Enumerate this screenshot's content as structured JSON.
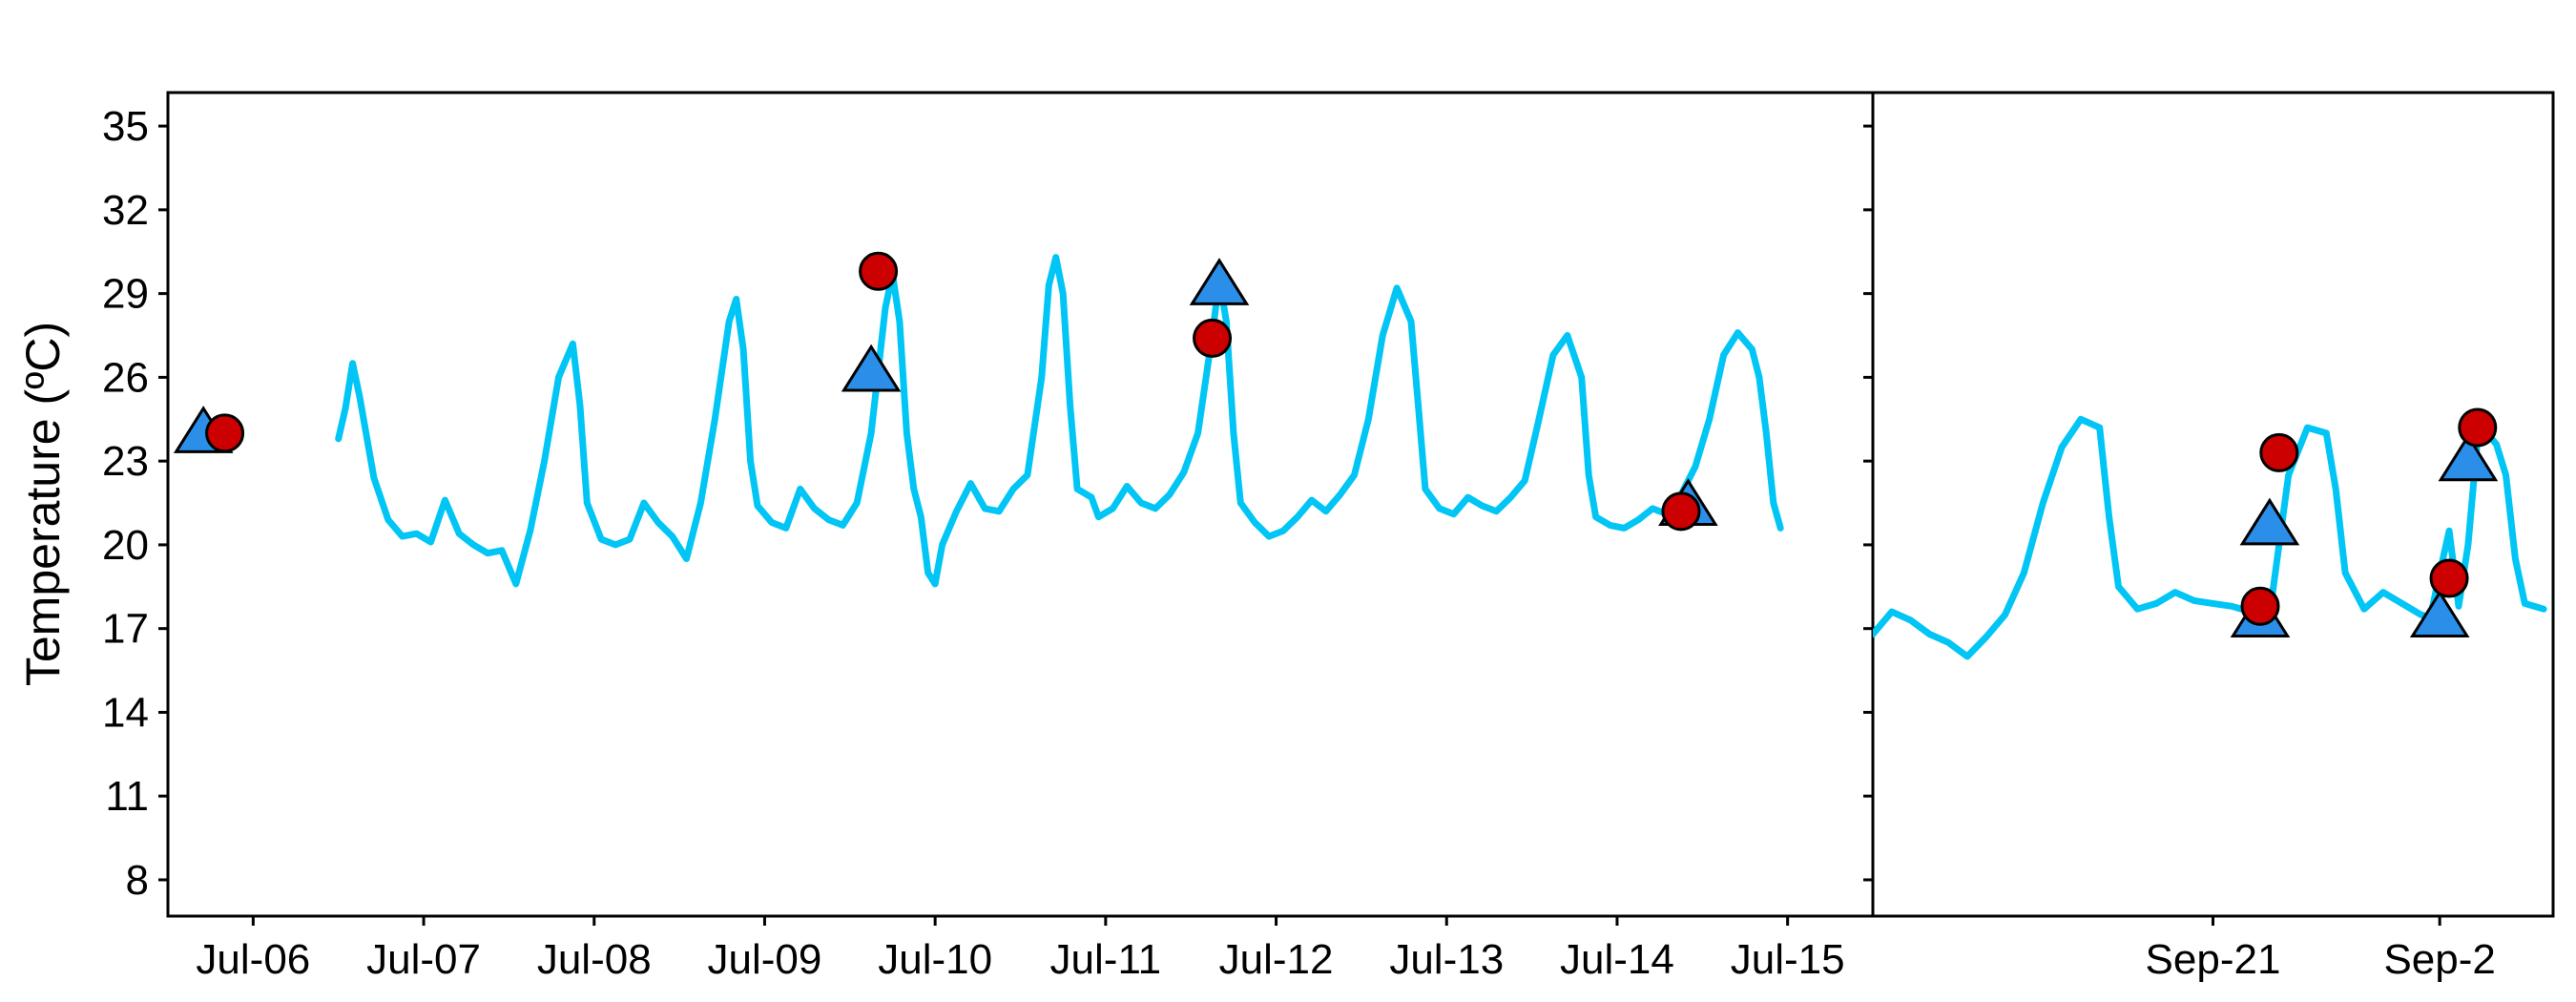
{
  "chart_data": {
    "type": "line",
    "ylabel": "Temperature (ºC)",
    "y_ticks": [
      8,
      11,
      14,
      17,
      20,
      23,
      26,
      29,
      32,
      35
    ],
    "ylim": [
      6.7,
      36.2
    ],
    "grid": false,
    "colors": {
      "line": "#00C5F5",
      "triangle": "#2B8FEA",
      "circle": "#CC0000",
      "marker_edge": "#000000"
    },
    "panels": [
      {
        "name": "july",
        "x_unit": "days",
        "xlim": [
          "2020-07-05 12:00",
          "2020-07-15 12:00"
        ],
        "x_tick_labels": [
          "Jul-06",
          "Jul-07",
          "Jul-08",
          "Jul-09",
          "Jul-10",
          "Jul-11",
          "Jul-12",
          "Jul-13",
          "Jul-14",
          "Jul-15"
        ],
        "x_ticks": [
          "2020-07-06",
          "2020-07-07",
          "2020-07-08",
          "2020-07-09",
          "2020-07-10",
          "2020-07-11",
          "2020-07-12",
          "2020-07-13",
          "2020-07-14",
          "2020-07-15"
        ],
        "line": [
          [
            "2020-07-06 12:00",
            23.8
          ],
          [
            "2020-07-06 13:00",
            24.9
          ],
          [
            "2020-07-06 14:00",
            26.5
          ],
          [
            "2020-07-06 15:00",
            25.3
          ],
          [
            "2020-07-06 17:00",
            22.4
          ],
          [
            "2020-07-06 19:00",
            20.9
          ],
          [
            "2020-07-06 21:00",
            20.3
          ],
          [
            "2020-07-06 23:00",
            20.4
          ],
          [
            "2020-07-07 01:00",
            20.1
          ],
          [
            "2020-07-07 03:00",
            21.6
          ],
          [
            "2020-07-07 05:00",
            20.4
          ],
          [
            "2020-07-07 07:00",
            20.0
          ],
          [
            "2020-07-07 09:00",
            19.7
          ],
          [
            "2020-07-07 11:00",
            19.8
          ],
          [
            "2020-07-07 13:00",
            18.6
          ],
          [
            "2020-07-07 15:00",
            20.5
          ],
          [
            "2020-07-07 17:00",
            23.0
          ],
          [
            "2020-07-07 19:00",
            26.0
          ],
          [
            "2020-07-07 21:00",
            27.2
          ],
          [
            "2020-07-07 22:00",
            25.0
          ],
          [
            "2020-07-07 23:00",
            21.5
          ],
          [
            "2020-07-08 01:00",
            20.2
          ],
          [
            "2020-07-08 03:00",
            20.0
          ],
          [
            "2020-07-08 05:00",
            20.2
          ],
          [
            "2020-07-08 07:00",
            21.5
          ],
          [
            "2020-07-08 09:00",
            20.8
          ],
          [
            "2020-07-08 11:00",
            20.3
          ],
          [
            "2020-07-08 13:00",
            19.5
          ],
          [
            "2020-07-08 15:00",
            21.5
          ],
          [
            "2020-07-08 17:00",
            24.5
          ],
          [
            "2020-07-08 19:00",
            28.0
          ],
          [
            "2020-07-08 20:00",
            28.8
          ],
          [
            "2020-07-08 21:00",
            27.0
          ],
          [
            "2020-07-08 22:00",
            23.0
          ],
          [
            "2020-07-08 23:00",
            21.4
          ],
          [
            "2020-07-09 01:00",
            20.8
          ],
          [
            "2020-07-09 03:00",
            20.6
          ],
          [
            "2020-07-09 05:00",
            22.0
          ],
          [
            "2020-07-09 07:00",
            21.3
          ],
          [
            "2020-07-09 09:00",
            20.9
          ],
          [
            "2020-07-09 11:00",
            20.7
          ],
          [
            "2020-07-09 13:00",
            21.5
          ],
          [
            "2020-07-09 15:00",
            24.0
          ],
          [
            "2020-07-09 17:00",
            28.5
          ],
          [
            "2020-07-09 18:00",
            29.7
          ],
          [
            "2020-07-09 19:00",
            28.0
          ],
          [
            "2020-07-09 20:00",
            24.0
          ],
          [
            "2020-07-09 21:00",
            22.0
          ],
          [
            "2020-07-09 22:00",
            21.0
          ],
          [
            "2020-07-09 23:00",
            19.0
          ],
          [
            "2020-07-10 00:00",
            18.6
          ],
          [
            "2020-07-10 01:00",
            20.0
          ],
          [
            "2020-07-10 03:00",
            21.2
          ],
          [
            "2020-07-10 05:00",
            22.2
          ],
          [
            "2020-07-10 07:00",
            21.3
          ],
          [
            "2020-07-10 09:00",
            21.2
          ],
          [
            "2020-07-10 11:00",
            22.0
          ],
          [
            "2020-07-10 13:00",
            22.5
          ],
          [
            "2020-07-10 15:00",
            26.0
          ],
          [
            "2020-07-10 16:00",
            29.3
          ],
          [
            "2020-07-10 17:00",
            30.3
          ],
          [
            "2020-07-10 18:00",
            29.0
          ],
          [
            "2020-07-10 19:00",
            25.0
          ],
          [
            "2020-07-10 20:00",
            22.0
          ],
          [
            "2020-07-10 22:00",
            21.7
          ],
          [
            "2020-07-10 23:00",
            21.0
          ],
          [
            "2020-07-11 01:00",
            21.3
          ],
          [
            "2020-07-11 03:00",
            22.1
          ],
          [
            "2020-07-11 05:00",
            21.5
          ],
          [
            "2020-07-11 07:00",
            21.3
          ],
          [
            "2020-07-11 09:00",
            21.8
          ],
          [
            "2020-07-11 11:00",
            22.6
          ],
          [
            "2020-07-11 13:00",
            24.0
          ],
          [
            "2020-07-11 15:00",
            27.5
          ],
          [
            "2020-07-11 16:00",
            29.5
          ],
          [
            "2020-07-11 17:00",
            28.0
          ],
          [
            "2020-07-11 18:00",
            24.0
          ],
          [
            "2020-07-11 19:00",
            21.5
          ],
          [
            "2020-07-11 21:00",
            20.8
          ],
          [
            "2020-07-11 23:00",
            20.3
          ],
          [
            "2020-07-12 01:00",
            20.5
          ],
          [
            "2020-07-12 03:00",
            21.0
          ],
          [
            "2020-07-12 05:00",
            21.6
          ],
          [
            "2020-07-12 07:00",
            21.2
          ],
          [
            "2020-07-12 09:00",
            21.8
          ],
          [
            "2020-07-12 11:00",
            22.5
          ],
          [
            "2020-07-12 13:00",
            24.5
          ],
          [
            "2020-07-12 15:00",
            27.5
          ],
          [
            "2020-07-12 17:00",
            29.2
          ],
          [
            "2020-07-12 19:00",
            28.0
          ],
          [
            "2020-07-12 20:00",
            25.0
          ],
          [
            "2020-07-12 21:00",
            22.0
          ],
          [
            "2020-07-12 23:00",
            21.3
          ],
          [
            "2020-07-13 01:00",
            21.1
          ],
          [
            "2020-07-13 03:00",
            21.7
          ],
          [
            "2020-07-13 05:00",
            21.4
          ],
          [
            "2020-07-13 07:00",
            21.2
          ],
          [
            "2020-07-13 09:00",
            21.7
          ],
          [
            "2020-07-13 11:00",
            22.3
          ],
          [
            "2020-07-13 13:00",
            24.5
          ],
          [
            "2020-07-13 15:00",
            26.8
          ],
          [
            "2020-07-13 17:00",
            27.5
          ],
          [
            "2020-07-13 19:00",
            26.0
          ],
          [
            "2020-07-13 20:00",
            22.5
          ],
          [
            "2020-07-13 21:00",
            21.0
          ],
          [
            "2020-07-13 23:00",
            20.7
          ],
          [
            "2020-07-14 01:00",
            20.6
          ],
          [
            "2020-07-14 03:00",
            20.9
          ],
          [
            "2020-07-14 05:00",
            21.3
          ],
          [
            "2020-07-14 07:00",
            21.1
          ],
          [
            "2020-07-14 09:00",
            21.8
          ],
          [
            "2020-07-14 11:00",
            22.8
          ],
          [
            "2020-07-14 13:00",
            24.5
          ],
          [
            "2020-07-14 15:00",
            26.8
          ],
          [
            "2020-07-14 17:00",
            27.6
          ],
          [
            "2020-07-14 19:00",
            27.0
          ],
          [
            "2020-07-14 20:00",
            26.0
          ],
          [
            "2020-07-14 21:00",
            24.0
          ],
          [
            "2020-07-14 22:00",
            21.5
          ],
          [
            "2020-07-14 23:00",
            20.6
          ]
        ],
        "triangles": [
          [
            "2020-07-05 17:00",
            24.0
          ],
          [
            "2020-07-09 15:00",
            26.2
          ],
          [
            "2020-07-11 16:00",
            29.3
          ],
          [
            "2020-07-14 10:00",
            21.4
          ]
        ],
        "circles": [
          [
            "2020-07-05 20:00",
            24.0
          ],
          [
            "2020-07-09 16:00",
            29.8
          ],
          [
            "2020-07-11 15:00",
            27.4
          ],
          [
            "2020-07-14 09:00",
            21.2
          ]
        ]
      },
      {
        "name": "september",
        "x_unit": "days",
        "xlim": [
          "2020-09-19 12:00",
          "2020-09-22 12:00"
        ],
        "x_tick_labels": [
          "Sep-21",
          "Sep-2"
        ],
        "x_ticks": [
          "2020-09-21",
          "2020-09-22"
        ],
        "line": [
          [
            "2020-09-19 12:00",
            16.8
          ],
          [
            "2020-09-19 14:00",
            17.6
          ],
          [
            "2020-09-19 16:00",
            17.3
          ],
          [
            "2020-09-19 18:00",
            16.8
          ],
          [
            "2020-09-19 20:00",
            16.5
          ],
          [
            "2020-09-19 22:00",
            16.0
          ],
          [
            "2020-09-20 00:00",
            16.7
          ],
          [
            "2020-09-20 02:00",
            17.5
          ],
          [
            "2020-09-20 04:00",
            19.0
          ],
          [
            "2020-09-20 06:00",
            21.5
          ],
          [
            "2020-09-20 08:00",
            23.5
          ],
          [
            "2020-09-20 10:00",
            24.5
          ],
          [
            "2020-09-20 12:00",
            24.2
          ],
          [
            "2020-09-20 13:00",
            21.0
          ],
          [
            "2020-09-20 14:00",
            18.5
          ],
          [
            "2020-09-20 16:00",
            17.7
          ],
          [
            "2020-09-20 18:00",
            17.9
          ],
          [
            "2020-09-20 20:00",
            18.3
          ],
          [
            "2020-09-20 22:00",
            18.0
          ],
          [
            "2020-09-21 00:00",
            17.9
          ],
          [
            "2020-09-21 02:00",
            17.8
          ],
          [
            "2020-09-21 04:00",
            17.6
          ],
          [
            "2020-09-21 06:00",
            17.5
          ],
          [
            "2020-09-21 07:00",
            20.0
          ],
          [
            "2020-09-21 08:00",
            22.5
          ],
          [
            "2020-09-21 10:00",
            24.2
          ],
          [
            "2020-09-21 12:00",
            24.0
          ],
          [
            "2020-09-21 13:00",
            22.0
          ],
          [
            "2020-09-21 14:00",
            19.0
          ],
          [
            "2020-09-21 16:00",
            17.7
          ],
          [
            "2020-09-21 18:00",
            18.3
          ],
          [
            "2020-09-21 20:00",
            17.9
          ],
          [
            "2020-09-21 22:00",
            17.5
          ],
          [
            "2020-09-21 23:00",
            17.4
          ],
          [
            "2020-09-22 00:00",
            19.0
          ],
          [
            "2020-09-22 01:00",
            20.5
          ],
          [
            "2020-09-22 02:00",
            17.8
          ],
          [
            "2020-09-22 03:00",
            20.0
          ],
          [
            "2020-09-22 04:00",
            23.8
          ],
          [
            "2020-09-22 05:00",
            24.0
          ],
          [
            "2020-09-22 06:00",
            23.6
          ],
          [
            "2020-09-22 07:00",
            22.5
          ],
          [
            "2020-09-22 08:00",
            19.5
          ],
          [
            "2020-09-22 09:00",
            17.9
          ],
          [
            "2020-09-22 11:00",
            17.7
          ]
        ],
        "triangles": [
          [
            "2020-09-21 05:00",
            17.4
          ],
          [
            "2020-09-21 06:00",
            20.7
          ],
          [
            "2020-09-22 00:00",
            17.4
          ],
          [
            "2020-09-22 03:00",
            23.0
          ]
        ],
        "circles": [
          [
            "2020-09-21 05:00",
            17.8
          ],
          [
            "2020-09-21 07:00",
            23.3
          ],
          [
            "2020-09-22 01:00",
            18.8
          ],
          [
            "2020-09-22 04:00",
            24.2
          ]
        ]
      }
    ]
  }
}
